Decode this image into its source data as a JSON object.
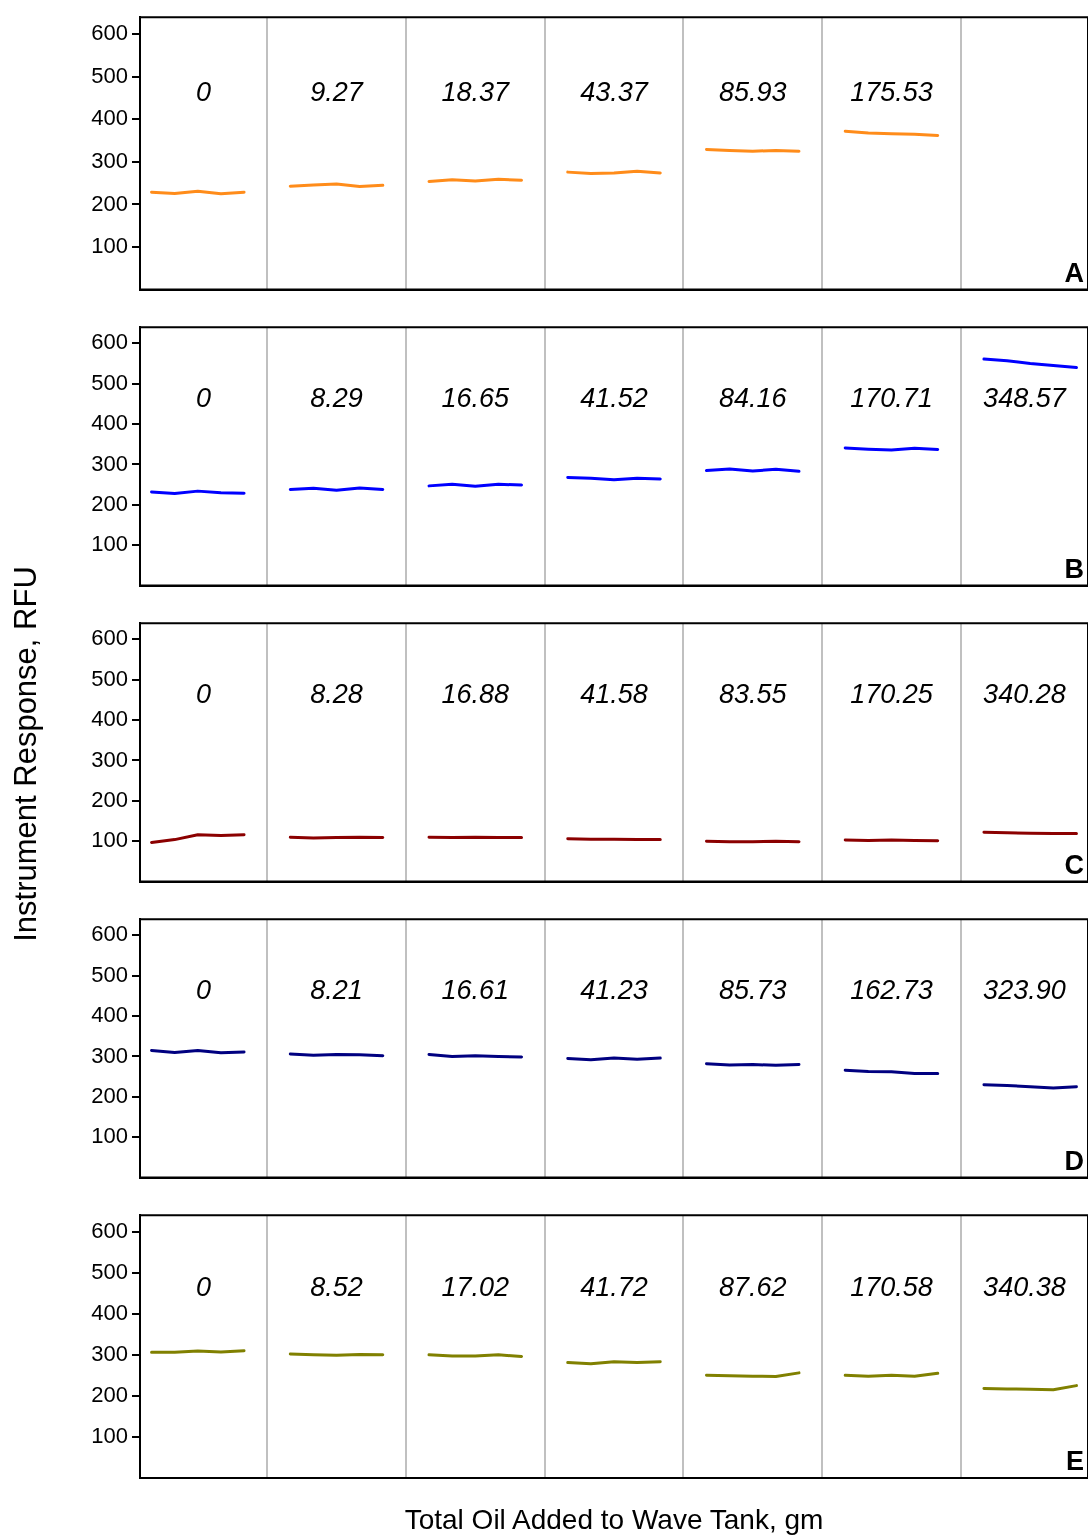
{
  "chart_data": [
    {
      "type": "line",
      "title": "A",
      "categories": [
        null,
        null,
        null,
        null,
        null,
        null,
        null,
        null,
        null,
        null,
        null,
        null,
        null,
        null,
        null,
        null,
        null,
        null,
        null,
        null,
        null,
        null,
        null,
        null,
        null,
        null,
        null,
        null,
        null,
        null,
        null,
        null,
        null,
        null,
        null,
        null,
        null,
        null,
        null,
        null,
        null
      ],
      "series": [
        {
          "color": "#ff8c1a",
          "values": [
            229,
            226,
            231,
            225,
            229,
            null,
            243,
            246,
            248,
            242,
            245,
            null,
            254,
            258,
            255,
            259,
            257,
            null,
            276,
            273,
            274,
            278,
            274,
            null,
            329,
            327,
            325,
            327,
            325,
            null,
            372,
            368,
            366,
            365,
            362,
            null,
            null,
            null,
            null,
            null,
            null
          ]
        }
      ],
      "annotations": [
        "0",
        "9.27",
        "18.37",
        "43.37",
        "85.93",
        "175.53"
      ],
      "ylim": [
        0,
        640
      ],
      "yticks": [
        100,
        200,
        300,
        400,
        500,
        600
      ],
      "grid": "x",
      "marker": "none",
      "line_style": "solid",
      "legend": false
    },
    {
      "type": "line",
      "title": "B",
      "categories": [
        null,
        null,
        null,
        null,
        null,
        null,
        null,
        null,
        null,
        null,
        null,
        null,
        null,
        null,
        null,
        null,
        null,
        null,
        null,
        null,
        null,
        null,
        null,
        null,
        null,
        null,
        null,
        null,
        null,
        null,
        null,
        null,
        null,
        null,
        null,
        null,
        null,
        null,
        null,
        null,
        null
      ],
      "series": [
        {
          "color": "#0000ff",
          "values": [
            232,
            228,
            234,
            230,
            229,
            null,
            238,
            241,
            236,
            242,
            238,
            null,
            247,
            251,
            246,
            251,
            249,
            null,
            268,
            266,
            262,
            266,
            264,
            null,
            285,
            289,
            284,
            288,
            283,
            null,
            341,
            338,
            336,
            340,
            337,
            null,
            561,
            557,
            550,
            545,
            540
          ]
        }
      ],
      "annotations": [
        "0",
        "8.29",
        "16.65",
        "41.52",
        "84.16",
        "170.71",
        "348.57"
      ],
      "ylim": [
        0,
        640
      ],
      "yticks": [
        100,
        200,
        300,
        400,
        500,
        600
      ],
      "grid": "x",
      "marker": "none",
      "line_style": "solid",
      "legend": false
    },
    {
      "type": "line",
      "title": "C",
      "ylabel": "Instrument Response,  RFU",
      "categories": [
        null,
        null,
        null,
        null,
        null,
        null,
        null,
        null,
        null,
        null,
        null,
        null,
        null,
        null,
        null,
        null,
        null,
        null,
        null,
        null,
        null,
        null,
        null,
        null,
        null,
        null,
        null,
        null,
        null,
        null,
        null,
        null,
        null,
        null,
        null,
        null,
        null,
        null,
        null,
        null,
        null
      ],
      "series": [
        {
          "color": "#8b0000",
          "values": [
            97,
            104,
            116,
            114,
            116,
            null,
            110,
            108,
            109,
            110,
            109,
            null,
            110,
            109,
            110,
            109,
            109,
            null,
            106,
            105,
            105,
            104,
            104,
            null,
            100,
            99,
            99,
            100,
            99,
            null,
            103,
            102,
            103,
            102,
            101,
            null,
            122,
            121,
            120,
            119,
            119
          ]
        }
      ],
      "annotations": [
        "0",
        "8.28",
        "16.88",
        "41.58",
        "83.55",
        "170.25",
        "340.28"
      ],
      "ylim": [
        0,
        640
      ],
      "yticks": [
        100,
        200,
        300,
        400,
        500,
        600
      ],
      "grid": "x",
      "marker": "none",
      "line_style": "solid",
      "legend": false
    },
    {
      "type": "line",
      "title": "D",
      "categories": [
        null,
        null,
        null,
        null,
        null,
        null,
        null,
        null,
        null,
        null,
        null,
        null,
        null,
        null,
        null,
        null,
        null,
        null,
        null,
        null,
        null,
        null,
        null,
        null,
        null,
        null,
        null,
        null,
        null,
        null,
        null,
        null,
        null,
        null,
        null,
        null,
        null,
        null,
        null,
        null,
        null
      ],
      "series": [
        {
          "color": "#000080",
          "values": [
            315,
            310,
            315,
            309,
            311,
            null,
            306,
            303,
            305,
            304,
            302,
            null,
            305,
            300,
            302,
            300,
            299,
            null,
            295,
            292,
            296,
            293,
            296,
            null,
            282,
            279,
            280,
            278,
            280,
            null,
            266,
            263,
            262,
            258,
            258,
            null,
            230,
            228,
            225,
            222,
            225
          ]
        }
      ],
      "annotations": [
        "0",
        "8.21",
        "16.61",
        "41.23",
        "85.73",
        "162.73",
        "323.90"
      ],
      "ylim": [
        0,
        640
      ],
      "yticks": [
        100,
        200,
        300,
        400,
        500,
        600
      ],
      "grid": "x",
      "marker": "none",
      "line_style": "solid",
      "legend": false
    },
    {
      "type": "line",
      "title": "E",
      "xlabel": "Total Oil Added to Wave Tank, gm",
      "categories": [
        null,
        null,
        null,
        null,
        null,
        null,
        null,
        null,
        null,
        null,
        null,
        null,
        null,
        null,
        null,
        null,
        null,
        null,
        null,
        null,
        null,
        null,
        null,
        null,
        null,
        null,
        null,
        null,
        null,
        null,
        null,
        null,
        null,
        null,
        null,
        null,
        null,
        null,
        null,
        null,
        null
      ],
      "series": [
        {
          "color": "#808000",
          "values": [
            306,
            306,
            309,
            307,
            310,
            null,
            302,
            300,
            299,
            301,
            300,
            null,
            300,
            297,
            297,
            300,
            296,
            null,
            281,
            278,
            283,
            281,
            283,
            null,
            250,
            249,
            248,
            247,
            256,
            null,
            250,
            248,
            250,
            248,
            255,
            null,
            218,
            217,
            216,
            215,
            225
          ]
        }
      ],
      "annotations": [
        "0",
        "8.52",
        "17.02",
        "41.72",
        "87.62",
        "170.58",
        "340.38"
      ],
      "ylim": [
        0,
        640
      ],
      "yticks": [
        100,
        200,
        300,
        400,
        500,
        600
      ],
      "grid": "x",
      "marker": "none",
      "line_style": "solid",
      "legend": false
    }
  ]
}
